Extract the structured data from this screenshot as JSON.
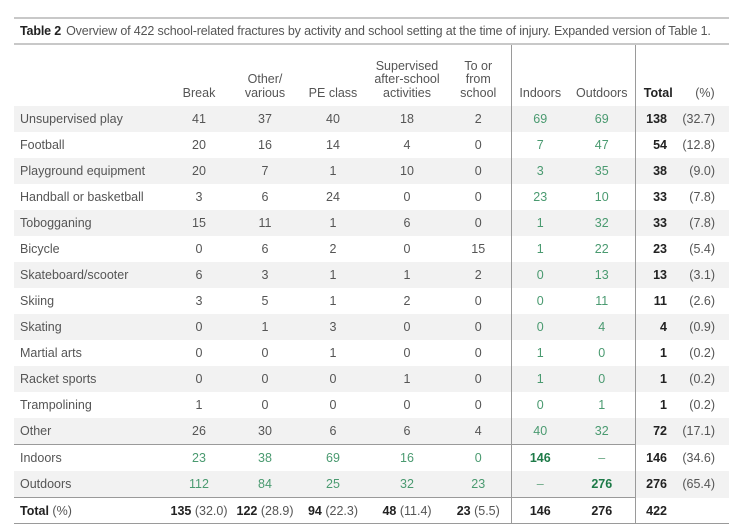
{
  "caption": {
    "tag": "Table 2",
    "text": "Overview of 422 school-related fractures by activity and school setting at the time of injury. Expanded version of Table 1."
  },
  "headers": {
    "label": "",
    "break": "Break",
    "other": "Other/ various",
    "pe": "PE class",
    "supervised": "Supervised after-school activities",
    "tofrom": "To or from school",
    "indoors": "Indoors",
    "outdoors": "Outdoors",
    "total": "Total",
    "pct": "(%)"
  },
  "rows": [
    {
      "label": "Unsupervised play",
      "break": "41",
      "other": "37",
      "pe": "40",
      "supervised": "18",
      "tofrom": "2",
      "indoors": "69",
      "outdoors": "69",
      "total": "138",
      "pct": "(32.7)"
    },
    {
      "label": "Football",
      "break": "20",
      "other": "16",
      "pe": "14",
      "supervised": "4",
      "tofrom": "0",
      "indoors": "7",
      "outdoors": "47",
      "total": "54",
      "pct": "(12.8)"
    },
    {
      "label": "Playground equipment",
      "break": "20",
      "other": "7",
      "pe": "1",
      "supervised": "10",
      "tofrom": "0",
      "indoors": "3",
      "outdoors": "35",
      "total": "38",
      "pct": "(9.0)"
    },
    {
      "label": "Handball or basketball",
      "break": "3",
      "other": "6",
      "pe": "24",
      "supervised": "0",
      "tofrom": "0",
      "indoors": "23",
      "outdoors": "10",
      "total": "33",
      "pct": "(7.8)"
    },
    {
      "label": "Tobogganing",
      "break": "15",
      "other": "11",
      "pe": "1",
      "supervised": "6",
      "tofrom": "0",
      "indoors": "1",
      "outdoors": "32",
      "total": "33",
      "pct": "(7.8)"
    },
    {
      "label": "Bicycle",
      "break": "0",
      "other": "6",
      "pe": "2",
      "supervised": "0",
      "tofrom": "15",
      "indoors": "1",
      "outdoors": "22",
      "total": "23",
      "pct": "(5.4)"
    },
    {
      "label": "Skateboard/scooter",
      "break": "6",
      "other": "3",
      "pe": "1",
      "supervised": "1",
      "tofrom": "2",
      "indoors": "0",
      "outdoors": "13",
      "total": "13",
      "pct": "(3.1)"
    },
    {
      "label": "Skiing",
      "break": "3",
      "other": "5",
      "pe": "1",
      "supervised": "2",
      "tofrom": "0",
      "indoors": "0",
      "outdoors": "11",
      "total": "11",
      "pct": "(2.6)"
    },
    {
      "label": "Skating",
      "break": "0",
      "other": "1",
      "pe": "3",
      "supervised": "0",
      "tofrom": "0",
      "indoors": "0",
      "outdoors": "4",
      "total": "4",
      "pct": "(0.9)"
    },
    {
      "label": "Martial arts",
      "break": "0",
      "other": "0",
      "pe": "1",
      "supervised": "0",
      "tofrom": "0",
      "indoors": "1",
      "outdoors": "0",
      "total": "1",
      "pct": "(0.2)"
    },
    {
      "label": "Racket sports",
      "break": "0",
      "other": "0",
      "pe": "0",
      "supervised": "1",
      "tofrom": "0",
      "indoors": "1",
      "outdoors": "0",
      "total": "1",
      "pct": "(0.2)"
    },
    {
      "label": "Trampolining",
      "break": "1",
      "other": "0",
      "pe": "0",
      "supervised": "0",
      "tofrom": "0",
      "indoors": "0",
      "outdoors": "1",
      "total": "1",
      "pct": "(0.2)"
    },
    {
      "label": "Other",
      "break": "26",
      "other": "30",
      "pe": "6",
      "supervised": "6",
      "tofrom": "4",
      "indoors": "40",
      "outdoors": "32",
      "total": "72",
      "pct": "(17.1)"
    }
  ],
  "setting_rows": [
    {
      "label": "Indoors",
      "break": "23",
      "other": "38",
      "pe": "69",
      "supervised": "16",
      "tofrom": "0",
      "indoors": "146",
      "outdoors": "–",
      "total": "146",
      "pct": "(34.6)"
    },
    {
      "label": "Outdoors",
      "break": "112",
      "other": "84",
      "pe": "25",
      "supervised": "32",
      "tofrom": "23",
      "indoors": "–",
      "outdoors": "276",
      "total": "276",
      "pct": "(65.4)"
    }
  ],
  "total_row": {
    "label": "Total",
    "label_pct": "(%)",
    "break": "135",
    "break_pct": "(32.0)",
    "other": "122",
    "other_pct": "(28.9)",
    "pe": "94",
    "pe_pct": "(22.3)",
    "supervised": "48",
    "supervised_pct": "(11.4)",
    "tofrom": "23",
    "tofrom_pct": "(5.5)",
    "indoors": "146",
    "outdoors": "276",
    "total": "422"
  },
  "colors": {
    "green_value": "#4a9a70",
    "green_diagonal": "#1e7a48",
    "row_shade": "#f2f2f2",
    "rule": "#9a9a9a"
  }
}
